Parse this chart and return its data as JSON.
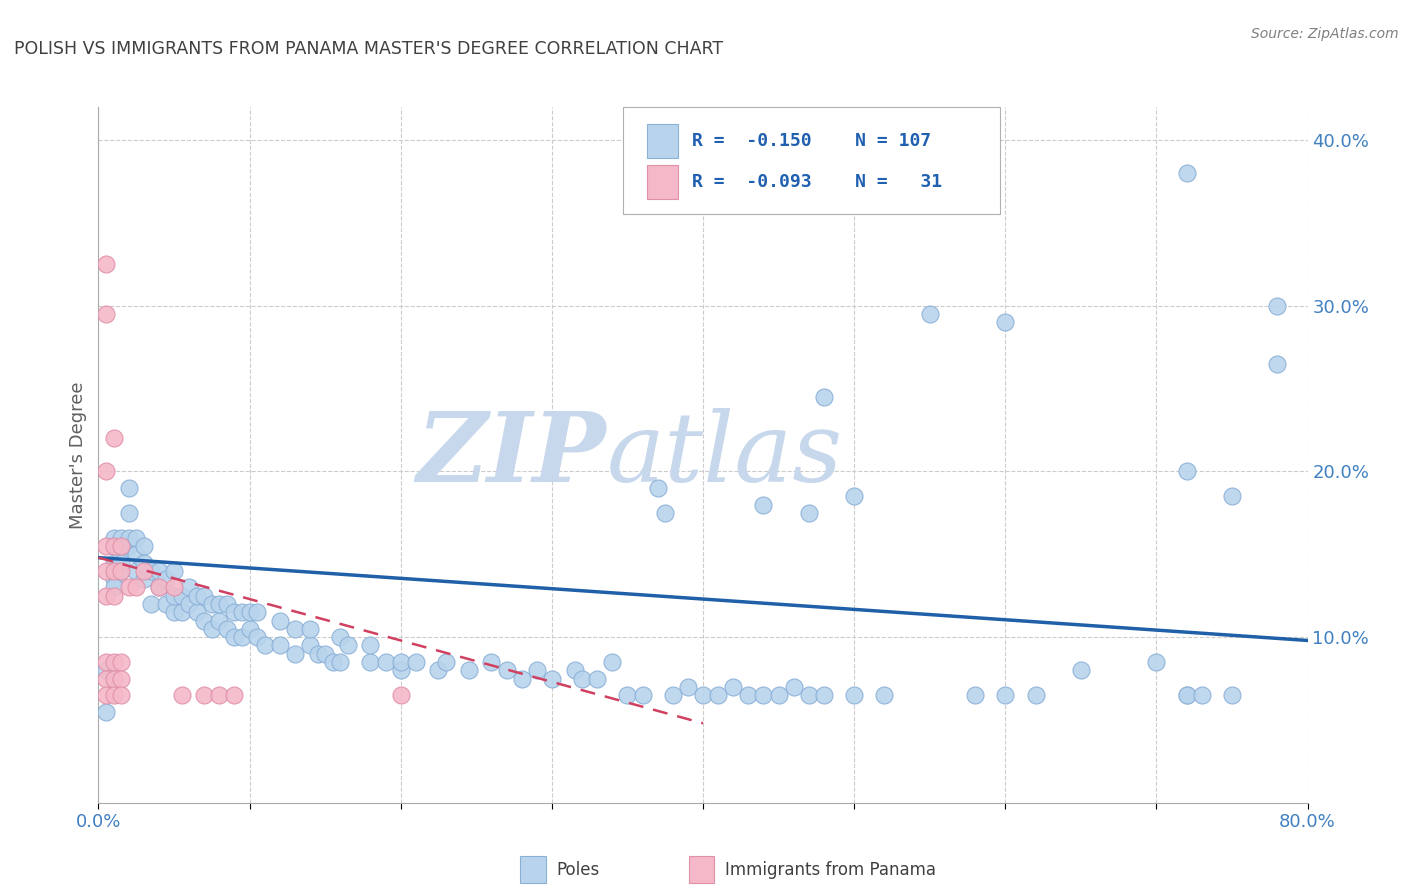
{
  "title": "POLISH VS IMMIGRANTS FROM PANAMA MASTER'S DEGREE CORRELATION CHART",
  "source": "Source: ZipAtlas.com",
  "ylabel": "Master's Degree",
  "xlim": [
    0.0,
    0.8
  ],
  "ylim": [
    0.0,
    0.42
  ],
  "yticks": [
    0.1,
    0.2,
    0.3,
    0.4
  ],
  "ytick_labels": [
    "10.0%",
    "20.0%",
    "30.0%",
    "40.0%"
  ],
  "xticks": [
    0.0,
    0.1,
    0.2,
    0.3,
    0.4,
    0.5,
    0.6,
    0.7,
    0.8
  ],
  "watermark_line1": "ZIP",
  "watermark_line2": "atlas",
  "blue_scatter": [
    [
      0.005,
      0.08
    ],
    [
      0.005,
      0.055
    ],
    [
      0.01,
      0.145
    ],
    [
      0.01,
      0.155
    ],
    [
      0.01,
      0.16
    ],
    [
      0.01,
      0.135
    ],
    [
      0.01,
      0.13
    ],
    [
      0.015,
      0.14
    ],
    [
      0.015,
      0.155
    ],
    [
      0.015,
      0.16
    ],
    [
      0.015,
      0.15
    ],
    [
      0.015,
      0.145
    ],
    [
      0.02,
      0.155
    ],
    [
      0.02,
      0.16
    ],
    [
      0.02,
      0.175
    ],
    [
      0.02,
      0.19
    ],
    [
      0.025,
      0.14
    ],
    [
      0.025,
      0.15
    ],
    [
      0.025,
      0.16
    ],
    [
      0.03,
      0.135
    ],
    [
      0.03,
      0.145
    ],
    [
      0.03,
      0.155
    ],
    [
      0.035,
      0.12
    ],
    [
      0.035,
      0.14
    ],
    [
      0.04,
      0.13
    ],
    [
      0.04,
      0.14
    ],
    [
      0.045,
      0.12
    ],
    [
      0.045,
      0.135
    ],
    [
      0.05,
      0.115
    ],
    [
      0.05,
      0.125
    ],
    [
      0.05,
      0.14
    ],
    [
      0.055,
      0.115
    ],
    [
      0.055,
      0.125
    ],
    [
      0.06,
      0.12
    ],
    [
      0.06,
      0.13
    ],
    [
      0.065,
      0.115
    ],
    [
      0.065,
      0.125
    ],
    [
      0.07,
      0.11
    ],
    [
      0.07,
      0.125
    ],
    [
      0.075,
      0.105
    ],
    [
      0.075,
      0.12
    ],
    [
      0.08,
      0.11
    ],
    [
      0.08,
      0.12
    ],
    [
      0.085,
      0.105
    ],
    [
      0.085,
      0.12
    ],
    [
      0.09,
      0.1
    ],
    [
      0.09,
      0.115
    ],
    [
      0.095,
      0.1
    ],
    [
      0.095,
      0.115
    ],
    [
      0.1,
      0.105
    ],
    [
      0.1,
      0.115
    ],
    [
      0.105,
      0.1
    ],
    [
      0.105,
      0.115
    ],
    [
      0.11,
      0.095
    ],
    [
      0.12,
      0.095
    ],
    [
      0.12,
      0.11
    ],
    [
      0.13,
      0.09
    ],
    [
      0.13,
      0.105
    ],
    [
      0.14,
      0.095
    ],
    [
      0.14,
      0.105
    ],
    [
      0.145,
      0.09
    ],
    [
      0.15,
      0.09
    ],
    [
      0.155,
      0.085
    ],
    [
      0.16,
      0.085
    ],
    [
      0.16,
      0.1
    ],
    [
      0.165,
      0.095
    ],
    [
      0.18,
      0.085
    ],
    [
      0.18,
      0.095
    ],
    [
      0.19,
      0.085
    ],
    [
      0.2,
      0.08
    ],
    [
      0.2,
      0.085
    ],
    [
      0.21,
      0.085
    ],
    [
      0.225,
      0.08
    ],
    [
      0.23,
      0.085
    ],
    [
      0.245,
      0.08
    ],
    [
      0.26,
      0.085
    ],
    [
      0.27,
      0.08
    ],
    [
      0.28,
      0.075
    ],
    [
      0.29,
      0.08
    ],
    [
      0.3,
      0.075
    ],
    [
      0.315,
      0.08
    ],
    [
      0.32,
      0.075
    ],
    [
      0.33,
      0.075
    ],
    [
      0.34,
      0.085
    ],
    [
      0.35,
      0.065
    ],
    [
      0.36,
      0.065
    ],
    [
      0.37,
      0.19
    ],
    [
      0.375,
      0.175
    ],
    [
      0.38,
      0.065
    ],
    [
      0.39,
      0.07
    ],
    [
      0.4,
      0.065
    ],
    [
      0.41,
      0.065
    ],
    [
      0.42,
      0.07
    ],
    [
      0.43,
      0.065
    ],
    [
      0.44,
      0.065
    ],
    [
      0.44,
      0.18
    ],
    [
      0.45,
      0.065
    ],
    [
      0.46,
      0.07
    ],
    [
      0.47,
      0.065
    ],
    [
      0.47,
      0.175
    ],
    [
      0.48,
      0.065
    ],
    [
      0.48,
      0.245
    ],
    [
      0.5,
      0.065
    ],
    [
      0.5,
      0.185
    ],
    [
      0.52,
      0.065
    ],
    [
      0.55,
      0.295
    ],
    [
      0.58,
      0.065
    ],
    [
      0.6,
      0.065
    ],
    [
      0.6,
      0.29
    ],
    [
      0.62,
      0.065
    ],
    [
      0.65,
      0.08
    ],
    [
      0.7,
      0.085
    ],
    [
      0.72,
      0.065
    ],
    [
      0.72,
      0.065
    ],
    [
      0.72,
      0.2
    ],
    [
      0.72,
      0.38
    ],
    [
      0.73,
      0.065
    ],
    [
      0.75,
      0.065
    ],
    [
      0.75,
      0.185
    ],
    [
      0.78,
      0.3
    ],
    [
      0.78,
      0.265
    ]
  ],
  "pink_scatter": [
    [
      0.005,
      0.325
    ],
    [
      0.005,
      0.295
    ],
    [
      0.005,
      0.2
    ],
    [
      0.005,
      0.155
    ],
    [
      0.005,
      0.14
    ],
    [
      0.005,
      0.125
    ],
    [
      0.005,
      0.085
    ],
    [
      0.005,
      0.075
    ],
    [
      0.005,
      0.065
    ],
    [
      0.01,
      0.22
    ],
    [
      0.01,
      0.155
    ],
    [
      0.01,
      0.14
    ],
    [
      0.01,
      0.125
    ],
    [
      0.01,
      0.085
    ],
    [
      0.01,
      0.075
    ],
    [
      0.01,
      0.065
    ],
    [
      0.015,
      0.155
    ],
    [
      0.015,
      0.14
    ],
    [
      0.015,
      0.085
    ],
    [
      0.015,
      0.075
    ],
    [
      0.015,
      0.065
    ],
    [
      0.02,
      0.13
    ],
    [
      0.025,
      0.13
    ],
    [
      0.03,
      0.14
    ],
    [
      0.04,
      0.13
    ],
    [
      0.05,
      0.13
    ],
    [
      0.055,
      0.065
    ],
    [
      0.07,
      0.065
    ],
    [
      0.08,
      0.065
    ],
    [
      0.09,
      0.065
    ],
    [
      0.2,
      0.065
    ]
  ],
  "blue_line_x": [
    0.0,
    0.8
  ],
  "blue_line_y": [
    0.148,
    0.098
  ],
  "pink_line_x": [
    0.0,
    0.4
  ],
  "pink_line_y": [
    0.148,
    0.048
  ],
  "scatter_blue_fill": "#b8d4ec",
  "scatter_blue_edge": "#8ab0d8",
  "scatter_pink_fill": "#f4b8c8",
  "scatter_pink_edge": "#e090a8",
  "blue_line_color": "#2060a8",
  "pink_line_color": "#d04060",
  "background_color": "#ffffff",
  "grid_color": "#cccccc",
  "title_color": "#404040",
  "ylabel_color": "#606060",
  "tick_color": "#4080c0",
  "legend_text_color": "#2060b0",
  "watermark_zip_color": "#c8d8ec",
  "watermark_atlas_color": "#c8d8ec",
  "source_color": "#808080",
  "bottom_label_color": "#404040"
}
